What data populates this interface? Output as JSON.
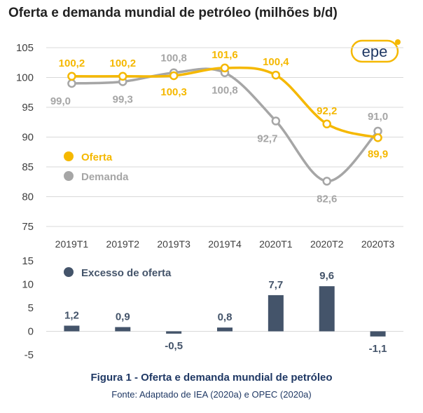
{
  "title": "Oferta e demanda mundial de petróleo (milhões b/d)",
  "caption": "Figura 1 - Oferta e demanda mundial de petróleo",
  "source": "Fonte: Adaptado de IEA (2020a) e OPEC (2020a)",
  "logo_text": "epe",
  "colors": {
    "oferta": "#f5b800",
    "demanda": "#a6a6a6",
    "excesso": "#44546a",
    "grid": "#d9d9d9",
    "axis_text": "#404040"
  },
  "chart_data": [
    {
      "type": "line",
      "categories": [
        "2019T1",
        "2019T2",
        "2019T3",
        "2019T4",
        "2020T1",
        "2020T2",
        "2020T3"
      ],
      "ylim": [
        75,
        105
      ],
      "yticks": [
        75,
        80,
        85,
        90,
        95,
        100,
        105
      ],
      "grid": true,
      "legend_position": "left-middle",
      "series": [
        {
          "name": "Oferta",
          "values": [
            100.2,
            100.2,
            100.3,
            101.6,
            100.4,
            92.2,
            89.9
          ],
          "labels": [
            "100,2",
            "100,2",
            "100,3",
            "101,6",
            "100,4",
            "92,2",
            "89,9"
          ]
        },
        {
          "name": "Demanda",
          "values": [
            99.0,
            99.3,
            100.8,
            100.8,
            92.7,
            82.6,
            91.0
          ],
          "labels": [
            "99,0",
            "99,3",
            "100,8",
            "100,8",
            "92,7",
            "82,6",
            "91,0"
          ]
        }
      ]
    },
    {
      "type": "bar",
      "categories": [
        "2019T1",
        "2019T2",
        "2019T3",
        "2019T4",
        "2020T1",
        "2020T2",
        "2020T3"
      ],
      "ylim": [
        -5,
        15
      ],
      "yticks": [
        -5,
        0,
        5,
        10,
        15
      ],
      "grid": false,
      "legend_position": "top-left",
      "series": [
        {
          "name": "Excesso de oferta",
          "values": [
            1.2,
            0.9,
            -0.5,
            0.8,
            7.7,
            9.6,
            -1.1
          ],
          "labels": [
            "1,2",
            "0,9",
            "-0,5",
            "0,8",
            "7,7",
            "9,6",
            "-1,1"
          ]
        }
      ]
    }
  ]
}
